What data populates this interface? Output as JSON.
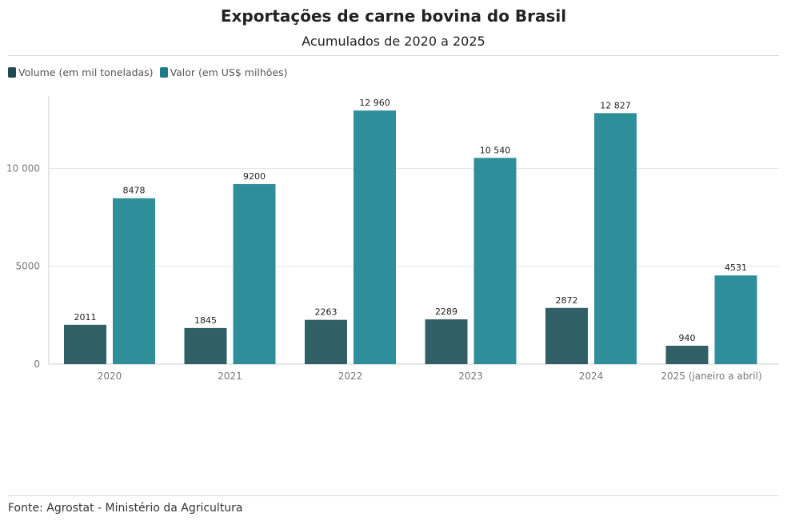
{
  "chart_data": {
    "type": "bar",
    "title": "Exportações de carne bovina do Brasil",
    "subtitle": "Acumulados de 2020 a 2025",
    "categories": [
      "2020",
      "2021",
      "2022",
      "2023",
      "2024",
      "2025 (janeiro a abril)"
    ],
    "series": [
      {
        "name": "Volume (em mil toneladas)",
        "color": "#305f66",
        "values": [
          2011,
          1845,
          2263,
          2289,
          2872,
          940
        ],
        "labels": [
          "2011",
          "1845",
          "2263",
          "2289",
          "2872",
          "940"
        ]
      },
      {
        "name": "Valor (em US$ milhões)",
        "color": "#2e8f9b",
        "values": [
          8478,
          9200,
          12960,
          10540,
          12827,
          4531
        ],
        "labels": [
          "8478",
          "9200",
          "12 960",
          "10 540",
          "12 827",
          "4531"
        ]
      }
    ],
    "yticks": [
      0,
      5000,
      10000
    ],
    "ytick_labels": [
      "0",
      "5000",
      "10 000"
    ],
    "ylim": [
      0,
      13700
    ],
    "grid": true,
    "legend_position": "top-left"
  },
  "legend_swatch_colors": [
    "#1e4a52",
    "#1e7a88"
  ],
  "source": "Fonte: Agrostat - Ministério da Agricultura"
}
